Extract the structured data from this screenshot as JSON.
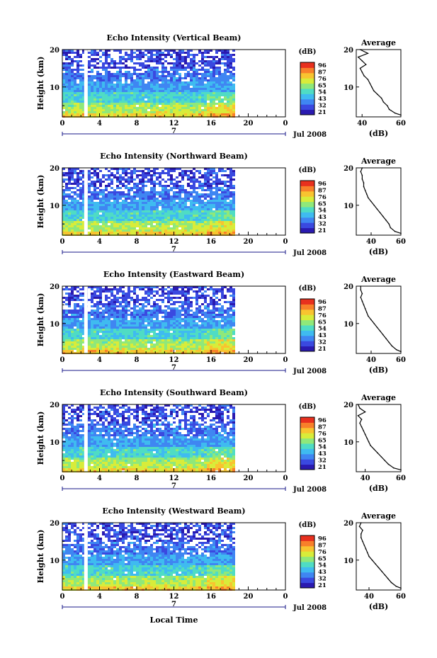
{
  "figure": {
    "xlabel": "Local Time",
    "date_label": "Jul 2008",
    "colorbar_unit": "(dB)",
    "colorbar_ticks": [
      "96",
      "87",
      "76",
      "65",
      "54",
      "43",
      "32",
      "21"
    ],
    "average_title": "Average",
    "average_xlabel": "(dB)",
    "colors": {
      "scale": [
        "#2a1ab0",
        "#3a49e0",
        "#3f86f2",
        "#3fbbf0",
        "#4fdcc4",
        "#8fe87a",
        "#d8ec3a",
        "#f8c430",
        "#f8802a",
        "#e8301e"
      ],
      "strip": "#ffffff"
    }
  },
  "chart_data": [
    {
      "type": "heatmap",
      "title": "Echo Intensity (Vertical Beam)",
      "ylabel": "Height (km)",
      "xlim": [
        0,
        24
      ],
      "ylim": [
        2,
        20
      ],
      "x_ticks": [
        "0",
        "4",
        "8",
        "12",
        "16",
        "20",
        "0"
      ],
      "y_ticks": [
        "20",
        "10"
      ],
      "mid_tick": "7",
      "data_extent_x": [
        0,
        18.5
      ],
      "colorbar": {
        "range": [
          21,
          96
        ]
      },
      "average": {
        "type": "line",
        "title": "Average",
        "xlim": [
          37,
          60
        ],
        "xticks": [
          "40",
          "60"
        ],
        "ylim": [
          2,
          20
        ],
        "yticks": [
          "20",
          "10"
        ],
        "xlabel": "(dB)",
        "y": [
          2.5,
          3,
          4,
          5,
          6,
          7,
          8,
          9,
          10,
          11,
          12,
          13,
          14,
          15,
          16,
          17,
          18,
          19,
          20
        ],
        "x": [
          60,
          57,
          54,
          53,
          51,
          50,
          48,
          46,
          45,
          44,
          43,
          41,
          40,
          39,
          42,
          40,
          38,
          43,
          39
        ]
      }
    },
    {
      "type": "heatmap",
      "title": "Echo Intensity (Northward Beam)",
      "ylabel": "Height (km)",
      "xlim": [
        0,
        24
      ],
      "ylim": [
        2,
        20
      ],
      "x_ticks": [
        "0",
        "4",
        "8",
        "12",
        "16",
        "20",
        "0"
      ],
      "y_ticks": [
        "20",
        "10"
      ],
      "mid_tick": "7",
      "data_extent_x": [
        0,
        18.5
      ],
      "colorbar": {
        "range": [
          21,
          96
        ]
      },
      "average": {
        "type": "line",
        "title": "Average",
        "xlim": [
          30,
          60
        ],
        "xticks": [
          "40",
          "60"
        ],
        "ylim": [
          2,
          20
        ],
        "yticks": [
          "20",
          "10"
        ],
        "xlabel": "(dB)",
        "y": [
          2.5,
          3,
          4,
          5,
          6,
          7,
          8,
          9,
          10,
          11,
          12,
          13,
          14,
          15,
          16,
          17,
          18,
          19,
          20
        ],
        "x": [
          60,
          56,
          53,
          52,
          50,
          48,
          46,
          44,
          42,
          40,
          38,
          37,
          36,
          35,
          35,
          34,
          34,
          33,
          34
        ]
      }
    },
    {
      "type": "heatmap",
      "title": "Echo Intensity (Eastward Beam)",
      "ylabel": "Height (km)",
      "xlim": [
        0,
        24
      ],
      "ylim": [
        2,
        20
      ],
      "x_ticks": [
        "0",
        "4",
        "8",
        "12",
        "16",
        "20",
        "0"
      ],
      "y_ticks": [
        "20",
        "10"
      ],
      "mid_tick": "7",
      "data_extent_x": [
        0,
        18.5
      ],
      "colorbar": {
        "range": [
          21,
          96
        ]
      },
      "average": {
        "type": "line",
        "title": "Average",
        "xlim": [
          30,
          60
        ],
        "xticks": [
          "40",
          "60"
        ],
        "ylim": [
          2,
          20
        ],
        "yticks": [
          "20",
          "10"
        ],
        "xlabel": "(dB)",
        "y": [
          2.5,
          3,
          4,
          5,
          6,
          7,
          8,
          9,
          10,
          11,
          12,
          13,
          14,
          15,
          16,
          17,
          18,
          19,
          20
        ],
        "x": [
          60,
          57,
          54,
          52,
          50,
          48,
          46,
          44,
          42,
          40,
          38,
          37,
          36,
          35,
          34,
          33,
          34,
          33,
          33
        ]
      }
    },
    {
      "type": "heatmap",
      "title": "Echo Intensity (Southward Beam)",
      "ylabel": "Height (km)",
      "xlim": [
        0,
        24
      ],
      "ylim": [
        2,
        20
      ],
      "x_ticks": [
        "0",
        "4",
        "8",
        "12",
        "16",
        "20",
        "0"
      ],
      "y_ticks": [
        "20",
        "10"
      ],
      "mid_tick": "7",
      "data_extent_x": [
        0,
        18.5
      ],
      "colorbar": {
        "range": [
          21,
          96
        ]
      },
      "average": {
        "type": "line",
        "title": "Average",
        "xlim": [
          35,
          60
        ],
        "xticks": [
          "40",
          "60"
        ],
        "ylim": [
          2,
          20
        ],
        "yticks": [
          "20",
          "10"
        ],
        "xlabel": "(dB)",
        "y": [
          2.5,
          3,
          4,
          5,
          6,
          7,
          8,
          9,
          10,
          11,
          12,
          13,
          14,
          15,
          16,
          17,
          18,
          19,
          20
        ],
        "x": [
          60,
          56,
          53,
          51,
          49,
          47,
          45,
          43,
          42,
          41,
          40,
          39,
          38,
          37,
          38,
          36,
          40,
          37,
          36
        ]
      }
    },
    {
      "type": "heatmap",
      "title": "Echo Intensity (Westward Beam)",
      "ylabel": "Height (km)",
      "xlim": [
        0,
        24
      ],
      "ylim": [
        2,
        20
      ],
      "x_ticks": [
        "0",
        "4",
        "8",
        "12",
        "16",
        "20",
        "0"
      ],
      "y_ticks": [
        "20",
        "10"
      ],
      "mid_tick": "7",
      "data_extent_x": [
        0,
        18.5
      ],
      "colorbar": {
        "range": [
          21,
          96
        ]
      },
      "average": {
        "type": "line",
        "title": "Average",
        "xlim": [
          32,
          60
        ],
        "xticks": [
          "40",
          "60"
        ],
        "ylim": [
          2,
          20
        ],
        "yticks": [
          "20",
          "10"
        ],
        "xlabel": "(dB)",
        "y": [
          2.5,
          3,
          4,
          5,
          6,
          7,
          8,
          9,
          10,
          11,
          12,
          13,
          14,
          15,
          16,
          17,
          18,
          19,
          20
        ],
        "x": [
          60,
          57,
          54,
          52,
          50,
          48,
          46,
          44,
          42,
          40,
          39,
          38,
          37,
          36,
          35,
          35,
          36,
          34,
          35
        ]
      }
    }
  ]
}
